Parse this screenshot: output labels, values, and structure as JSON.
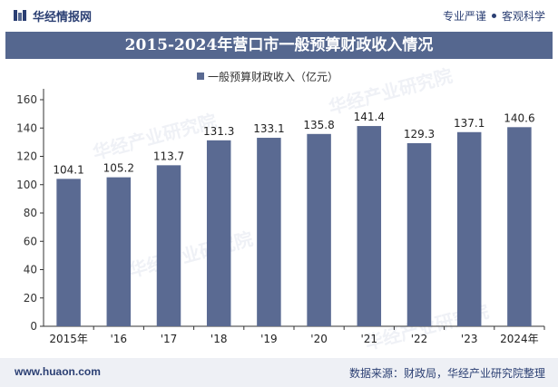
{
  "header": {
    "brand": "华经情报网",
    "tagline_left": "专业严谨",
    "tagline_right": "客观科学"
  },
  "title": "2015-2024年营口市一般预算财政收入情况",
  "chart_data": {
    "type": "bar",
    "title": "2015-2024年营口市一般预算财政收入情况",
    "categories": [
      "2015年",
      "'16",
      "'17",
      "'18",
      "'19",
      "'20",
      "'21",
      "'22",
      "'23",
      "2024年"
    ],
    "series": [
      {
        "name": "一般预算财政收入（亿元）",
        "values": [
          104.1,
          105.2,
          113.7,
          131.3,
          133.1,
          135.8,
          141.4,
          129.3,
          137.1,
          140.6
        ],
        "color": "#5a6a92"
      }
    ],
    "yticks": [
      0,
      20,
      40,
      60,
      80,
      100,
      120,
      140,
      160
    ],
    "ylim": [
      0,
      160
    ],
    "xlabel": "",
    "ylabel": "",
    "grid": false,
    "legend": "top-center"
  },
  "watermark": "华经产业研究院",
  "footer": {
    "website": "www.huaon.com",
    "source": "数据来源：财政局，华经产业研究院整理"
  }
}
